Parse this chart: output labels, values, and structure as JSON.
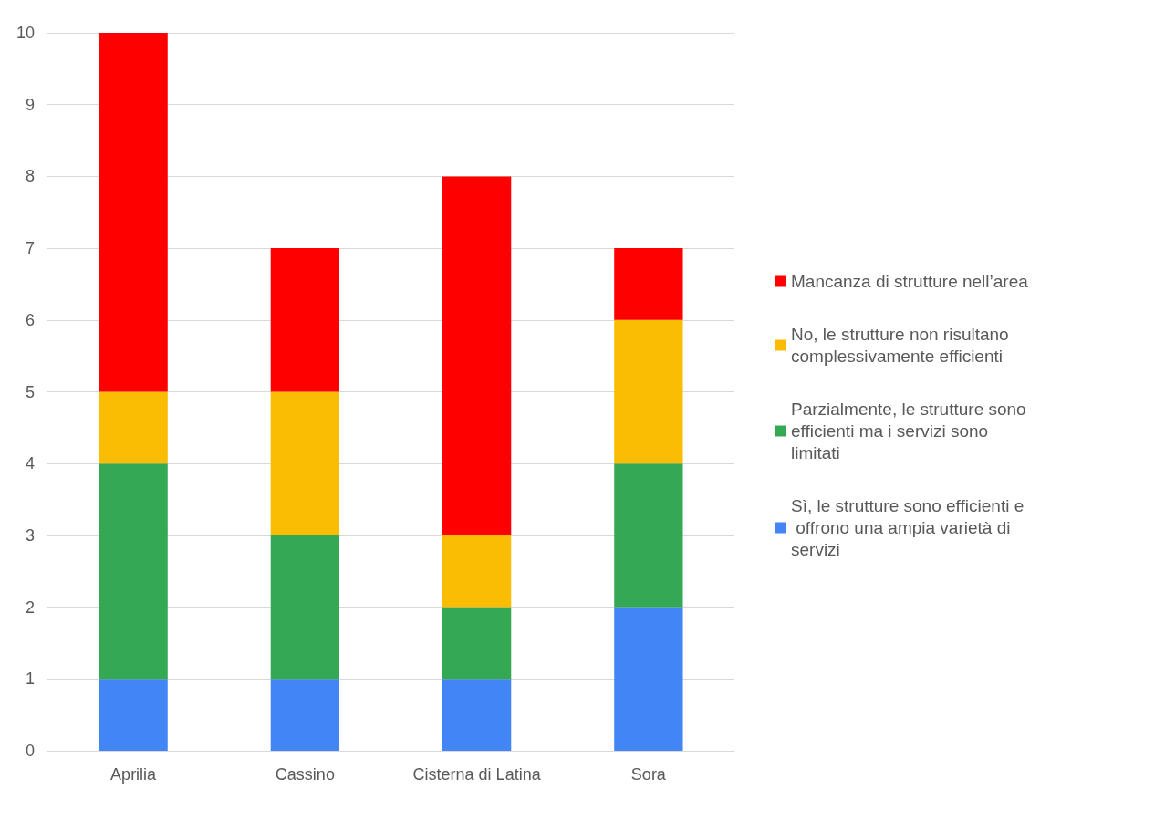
{
  "chart_data": {
    "type": "bar",
    "stacked": true,
    "categories": [
      "Aprilia",
      "Cassino",
      "Cisterna di Latina",
      "Sora"
    ],
    "series": [
      {
        "name": "Sì, le strutture sono efficienti e offrono una ampia varietà di servizi",
        "color": "#4285f4",
        "values": [
          1,
          1,
          1,
          2
        ]
      },
      {
        "name": "Parzialmente, le strutture sono efficienti ma i servizi sono limitati",
        "color": "#34a853",
        "values": [
          3,
          2,
          1,
          2
        ]
      },
      {
        "name": "No, le strutture non risultano complessivamente efficienti",
        "color": "#fbbc04",
        "values": [
          1,
          2,
          1,
          2
        ]
      },
      {
        "name": "Mancanza di strutture nell’area",
        "color": "#ff0000",
        "values": [
          5,
          2,
          5,
          1
        ]
      }
    ],
    "ylim": [
      0,
      10
    ],
    "yticks": [
      0,
      1,
      2,
      3,
      4,
      5,
      6,
      7,
      8,
      9,
      10
    ],
    "grid": "y",
    "legend": "right"
  }
}
